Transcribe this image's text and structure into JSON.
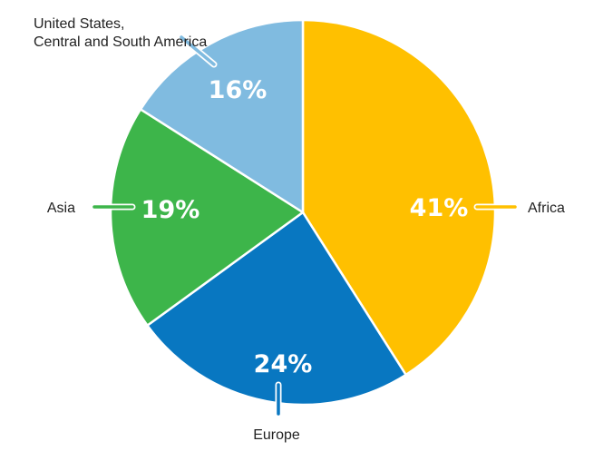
{
  "chart_data": {
    "type": "pie",
    "title": "",
    "slices": [
      {
        "label": "Africa",
        "value": 41,
        "value_label": "41%",
        "color": "#ffc000"
      },
      {
        "label": "Europe",
        "value": 24,
        "value_label": "24%",
        "color": "#0877c1"
      },
      {
        "label": "Asia",
        "value": 19,
        "value_label": "19%",
        "color": "#3db54a"
      },
      {
        "label": "United States, Central and South America",
        "value": 16,
        "value_label": "16%",
        "color": "#80bbe0"
      }
    ],
    "start_angle": "12 o'clock",
    "direction": "clockwise",
    "legend": "none (direct labels)"
  }
}
